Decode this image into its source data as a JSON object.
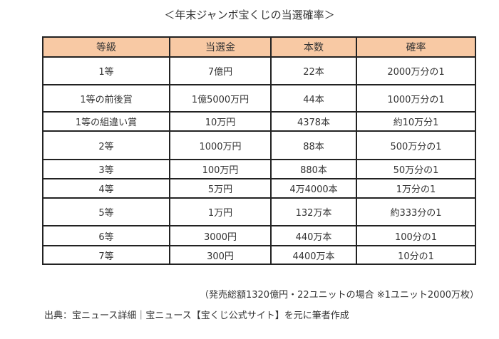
{
  "title": "＜年末ジャンボ宝くじの当選確率＞",
  "header_color": "#f8c9a4",
  "table": {
    "headers": [
      "等級",
      "当選金",
      "本数",
      "確率"
    ],
    "rows": [
      [
        "1等",
        "7億円",
        "22本",
        "2000万分の1"
      ],
      [
        "1等の前後賞",
        "1億5000万円",
        "44本",
        "1000万分の1"
      ],
      [
        "1等の組違い賞",
        "10万円",
        "4378本",
        "約10万分1"
      ],
      [
        "2等",
        "1000万円",
        "88本",
        "500万分の1"
      ],
      [
        "3等",
        "100万円",
        "880本",
        "50万分の1"
      ],
      [
        "4等",
        "5万円",
        "4万4000本",
        "1万分の1"
      ],
      [
        "5等",
        "1万円",
        "132万本",
        "約333分の1"
      ],
      [
        "6等",
        "3000円",
        "440万本",
        "100分の1"
      ],
      [
        "7等",
        "300円",
        "4400万本",
        "10分の1"
      ]
    ]
  },
  "note": "（発売総額1320億円・22ユニットの場合 ※1ユニット2000万枚）",
  "source": "出典：宝ニュース詳細｜宝ニュース【宝くじ公式サイト】を元に筆者作成"
}
